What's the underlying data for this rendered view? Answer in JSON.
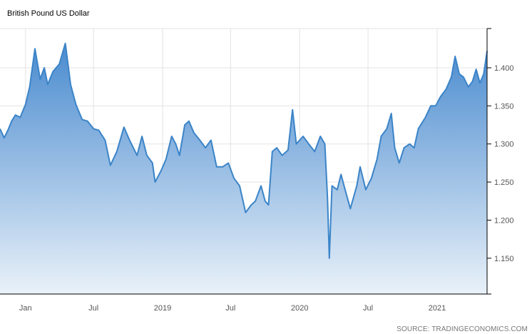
{
  "chart_data": {
    "type": "area",
    "title": "British Pound US Dollar",
    "source": "SOURCE: TRADINGECONOMICS.COM",
    "xlabel": "",
    "ylabel": "",
    "xlim": [
      "2017-10-25",
      "2021-05-14"
    ],
    "ylim": [
      1.103,
      1.4515
    ],
    "grid": true,
    "y_axis_position": "right",
    "x_ticks": [
      {
        "date": "2018-01-01",
        "label": "Jan"
      },
      {
        "date": "2018-07-01",
        "label": "Jul"
      },
      {
        "date": "2019-01-01",
        "label": "2019"
      },
      {
        "date": "2019-07-01",
        "label": "Jul"
      },
      {
        "date": "2020-01-01",
        "label": "2020"
      },
      {
        "date": "2020-07-01",
        "label": "Jul"
      },
      {
        "date": "2021-01-01",
        "label": "2021"
      }
    ],
    "y_ticks": [
      {
        "value": 1.15,
        "label": "1.150"
      },
      {
        "value": 1.2,
        "label": "1.200"
      },
      {
        "value": 1.25,
        "label": "1.250"
      },
      {
        "value": 1.3,
        "label": "1.300"
      },
      {
        "value": 1.35,
        "label": "1.350"
      },
      {
        "value": 1.4,
        "label": "1.400"
      }
    ],
    "colors": {
      "line": "#3b84c8",
      "fill_top": "#4a8bcf",
      "fill_bottom": "#e9f1f9",
      "grid": "#e3e3e3",
      "axis": "#000000"
    },
    "series": [
      {
        "x": [
          "2017-10-25",
          "2017-11-05",
          "2017-11-15",
          "2017-11-25",
          "2017-12-05",
          "2017-12-18",
          "2018-01-01",
          "2018-01-12",
          "2018-01-26",
          "2018-02-09",
          "2018-02-20",
          "2018-03-01",
          "2018-03-15",
          "2018-04-01",
          "2018-04-17",
          "2018-05-01",
          "2018-05-15",
          "2018-06-01",
          "2018-06-15",
          "2018-07-01",
          "2018-07-15",
          "2018-08-01",
          "2018-08-15",
          "2018-09-01",
          "2018-09-20",
          "2018-10-05",
          "2018-10-25",
          "2018-11-07",
          "2018-11-20",
          "2018-12-05",
          "2018-12-12",
          "2018-12-28",
          "2019-01-10",
          "2019-01-25",
          "2019-02-05",
          "2019-02-15",
          "2019-03-01",
          "2019-03-12",
          "2019-03-25",
          "2019-04-10",
          "2019-04-25",
          "2019-05-10",
          "2019-05-25",
          "2019-06-10",
          "2019-06-25",
          "2019-07-10",
          "2019-07-25",
          "2019-08-10",
          "2019-08-25",
          "2019-09-05",
          "2019-09-20",
          "2019-10-01",
          "2019-10-10",
          "2019-10-20",
          "2019-11-01",
          "2019-11-15",
          "2019-12-01",
          "2019-12-13",
          "2019-12-23",
          "2020-01-10",
          "2020-01-25",
          "2020-02-10",
          "2020-02-25",
          "2020-03-08",
          "2020-03-15",
          "2020-03-20",
          "2020-03-27",
          "2020-04-10",
          "2020-04-20",
          "2020-05-01",
          "2020-05-15",
          "2020-06-01",
          "2020-06-10",
          "2020-06-25",
          "2020-07-10",
          "2020-07-25",
          "2020-08-05",
          "2020-08-20",
          "2020-09-01",
          "2020-09-10",
          "2020-09-22",
          "2020-10-05",
          "2020-10-20",
          "2020-11-01",
          "2020-11-12",
          "2020-12-01",
          "2020-12-15",
          "2020-12-28",
          "2021-01-10",
          "2021-01-25",
          "2021-02-08",
          "2021-02-18",
          "2021-03-01",
          "2021-03-12",
          "2021-03-25",
          "2021-04-05",
          "2021-04-15",
          "2021-04-25",
          "2021-05-05",
          "2021-05-14"
        ],
        "values": [
          1.32,
          1.308,
          1.318,
          1.33,
          1.338,
          1.335,
          1.352,
          1.375,
          1.425,
          1.385,
          1.4,
          1.378,
          1.395,
          1.405,
          1.432,
          1.378,
          1.352,
          1.332,
          1.33,
          1.32,
          1.318,
          1.305,
          1.272,
          1.29,
          1.322,
          1.305,
          1.285,
          1.31,
          1.285,
          1.275,
          1.25,
          1.265,
          1.28,
          1.31,
          1.3,
          1.285,
          1.325,
          1.33,
          1.315,
          1.305,
          1.295,
          1.305,
          1.27,
          1.27,
          1.275,
          1.255,
          1.245,
          1.21,
          1.22,
          1.225,
          1.245,
          1.225,
          1.22,
          1.29,
          1.295,
          1.285,
          1.292,
          1.345,
          1.3,
          1.31,
          1.3,
          1.29,
          1.31,
          1.3,
          1.23,
          1.15,
          1.245,
          1.24,
          1.26,
          1.24,
          1.215,
          1.245,
          1.27,
          1.24,
          1.255,
          1.28,
          1.31,
          1.32,
          1.34,
          1.295,
          1.275,
          1.295,
          1.3,
          1.295,
          1.32,
          1.335,
          1.35,
          1.35,
          1.362,
          1.372,
          1.388,
          1.415,
          1.392,
          1.388,
          1.375,
          1.382,
          1.398,
          1.38,
          1.392,
          1.422
        ]
      }
    ]
  }
}
